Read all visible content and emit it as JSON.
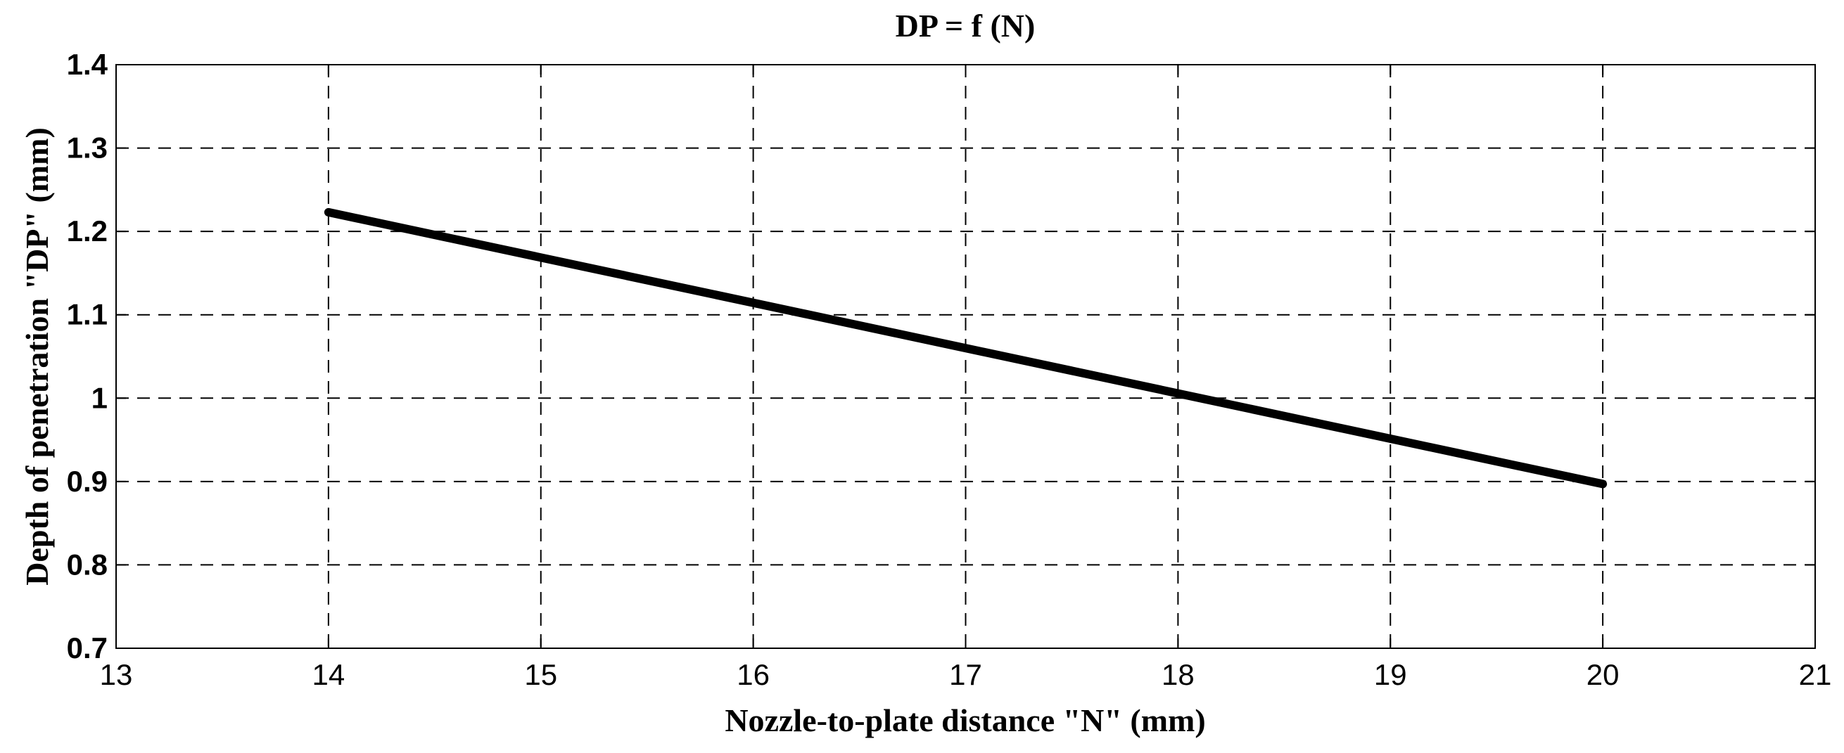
{
  "chart_data": {
    "type": "line",
    "title": "DP = f (N)",
    "xlabel": "Nozzle-to-plate distance \"N\" (mm)",
    "ylabel": "Depth of penetration \"DP\" (mm)",
    "xlim": [
      13,
      21
    ],
    "ylim": [
      0.7,
      1.4
    ],
    "xticks": [
      13,
      14,
      15,
      16,
      17,
      18,
      19,
      20,
      21
    ],
    "xtick_labels": [
      "13",
      "14",
      "15",
      "16",
      "17",
      "18",
      "19",
      "20",
      "21"
    ],
    "yticks": [
      0.7,
      0.8,
      0.9,
      1.0,
      1.1,
      1.2,
      1.3,
      1.4
    ],
    "ytick_labels": [
      "0.7",
      "0.8",
      "0.9",
      "1",
      "1.1",
      "1.2",
      "1.3",
      "1.4"
    ],
    "grid": true,
    "grid_style": "dashed",
    "series": [
      {
        "color": "#000000",
        "x": [
          14,
          20
        ],
        "y": [
          1.223,
          0.897
        ]
      }
    ]
  }
}
